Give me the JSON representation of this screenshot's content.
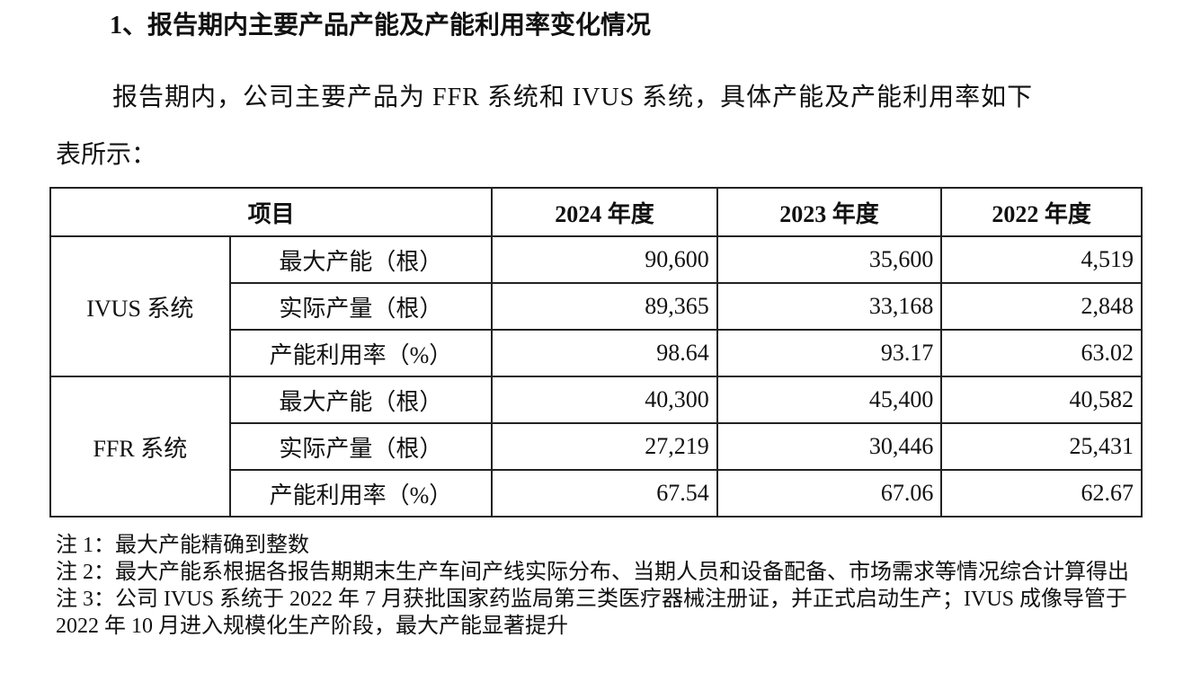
{
  "heading": "1、报告期内主要产品产能及产能利用率变化情况",
  "intro_line1": "报告期内，公司主要产品为 FFR 系统和 IVUS 系统，具体产能及产能利用率如下",
  "intro_line2": "表所示：",
  "table": {
    "headers": [
      "项目",
      "2024 年度",
      "2023 年度",
      "2022 年度"
    ],
    "groups": [
      {
        "name": "IVUS 系统",
        "rows": [
          {
            "item": "最大产能（根）",
            "values": [
              "90,600",
              "35,600",
              "4,519"
            ]
          },
          {
            "item": "实际产量（根）",
            "values": [
              "89,365",
              "33,168",
              "2,848"
            ]
          },
          {
            "item": "产能利用率（%）",
            "values": [
              "98.64",
              "93.17",
              "63.02"
            ]
          }
        ]
      },
      {
        "name": "FFR 系统",
        "rows": [
          {
            "item": "最大产能（根）",
            "values": [
              "40,300",
              "45,400",
              "40,582"
            ]
          },
          {
            "item": "实际产量（根）",
            "values": [
              "27,219",
              "30,446",
              "25,431"
            ]
          },
          {
            "item": "产能利用率（%）",
            "values": [
              "67.54",
              "67.06",
              "62.67"
            ]
          }
        ]
      }
    ]
  },
  "notes": [
    "注 1：最大产能精确到整数",
    "注 2：最大产能系根据各报告期期末生产车间产线实际分布、当期人员和设备配备、市场需求等情况综合计算得出",
    "注 3：公司 IVUS 系统于 2022 年 7 月获批国家药监局第三类医疗器械注册证，并正式启动生产；IVUS 成像导管于 2022 年 10 月进入规模化生产阶段，最大产能显著提升"
  ]
}
